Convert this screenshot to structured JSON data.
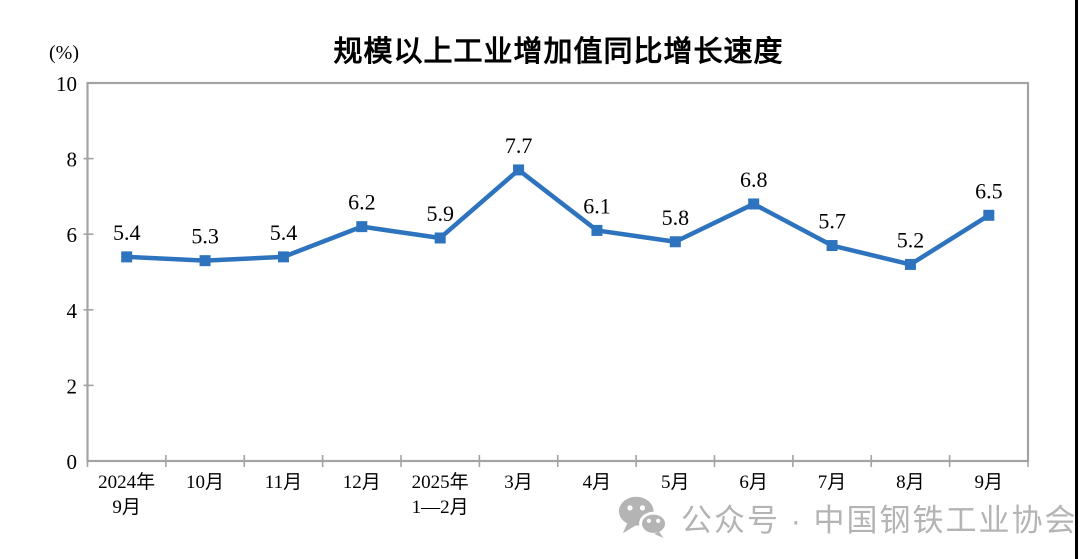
{
  "chart_data": {
    "type": "line",
    "title": "规模以上工业增加值同比增长速度",
    "unit_label": "(%)",
    "categories": [
      [
        "2024年",
        "9月"
      ],
      [
        "10月"
      ],
      [
        "11月"
      ],
      [
        "12月"
      ],
      [
        "2025年",
        "1—2月"
      ],
      [
        "3月"
      ],
      [
        "4月"
      ],
      [
        "5月"
      ],
      [
        "6月"
      ],
      [
        "7月"
      ],
      [
        "8月"
      ],
      [
        "9月"
      ]
    ],
    "values": [
      5.4,
      5.3,
      5.4,
      6.2,
      5.9,
      7.7,
      6.1,
      5.8,
      6.8,
      5.7,
      5.2,
      6.5
    ],
    "data_labels": [
      "5.4",
      "5.3",
      "5.4",
      "6.2",
      "5.9",
      "7.7",
      "6.1",
      "5.8",
      "6.8",
      "5.7",
      "5.2",
      "6.5"
    ],
    "ylim": [
      0,
      10
    ],
    "yticks": [
      0,
      2,
      4,
      6,
      8,
      10
    ],
    "grid": false,
    "legend": "none",
    "line_color": "#2E73BE",
    "marker": "square",
    "axis_color": "#A3A3A3",
    "label_color": "#000000"
  },
  "watermark": {
    "icon": "wechat-icon",
    "text": "公众号 · 中国钢铁工业协会",
    "color": "#B4B4B4"
  }
}
